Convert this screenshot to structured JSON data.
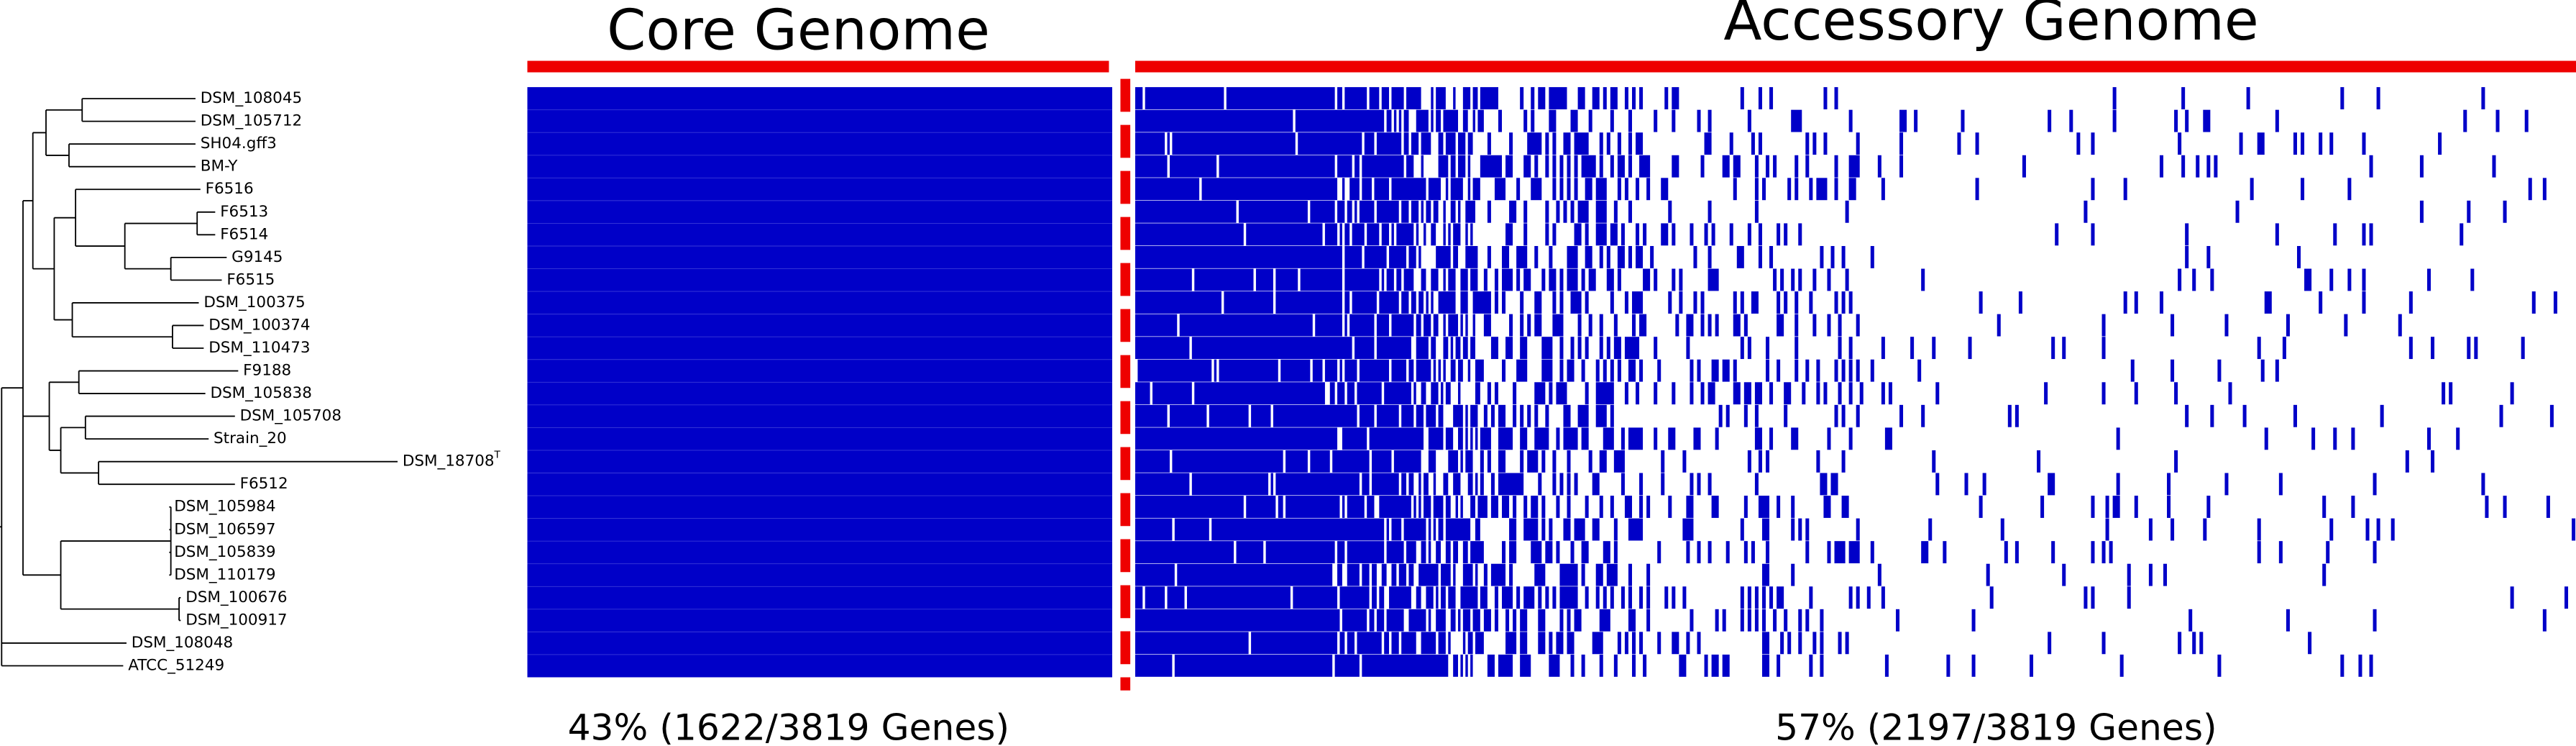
{
  "header": {
    "core_title": "Core Genome",
    "accessory_title": "Accessory Genome"
  },
  "strains": [
    {
      "name": "DSM_108045"
    },
    {
      "name": "DSM_105712"
    },
    {
      "name": "SH04.gff3"
    },
    {
      "name": "BM-Y"
    },
    {
      "name": "F6516"
    },
    {
      "name": "F6513"
    },
    {
      "name": "F6514"
    },
    {
      "name": "G9145"
    },
    {
      "name": "F6515"
    },
    {
      "name": "DSM_100375"
    },
    {
      "name": "DSM_100374"
    },
    {
      "name": "DSM_110473"
    },
    {
      "name": "F9188"
    },
    {
      "name": "DSM_105838"
    },
    {
      "name": "DSM_105708"
    },
    {
      "name": "Strain_20"
    },
    {
      "name": "DSM_18708",
      "superscript": "T"
    },
    {
      "name": "F6512"
    },
    {
      "name": "DSM_105984"
    },
    {
      "name": "DSM_106597"
    },
    {
      "name": "DSM_105839"
    },
    {
      "name": "DSM_110179"
    },
    {
      "name": "DSM_100676"
    },
    {
      "name": "DSM_100917"
    },
    {
      "name": "DSM_108048"
    },
    {
      "name": "ATCC_51249"
    }
  ],
  "footer": {
    "core_stat": "43% (1622/3819 Genes)",
    "accessory_stat": "57% (2197/3819 Genes)"
  }
}
